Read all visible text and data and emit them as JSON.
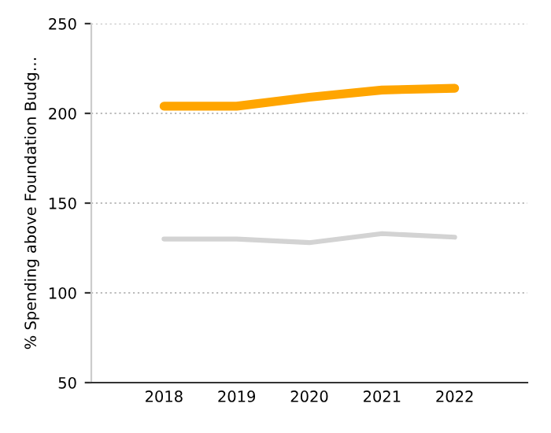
{
  "chart_data": {
    "type": "line",
    "ylabel": "% Spending above Foundation Budg…",
    "categories": [
      "2018",
      "2019",
      "2020",
      "2021",
      "2022"
    ],
    "series": [
      {
        "color": "#ffa500",
        "values": [
          204,
          204,
          209,
          213,
          214
        ]
      },
      {
        "color": "#d3d3d3",
        "values": [
          130,
          130,
          128,
          133,
          131
        ]
      }
    ],
    "ylim": [
      50,
      250
    ],
    "yticks": [
      50,
      100,
      150,
      200,
      250
    ],
    "grid": "y",
    "legend": false,
    "marker": "none",
    "line_style": "solid"
  }
}
